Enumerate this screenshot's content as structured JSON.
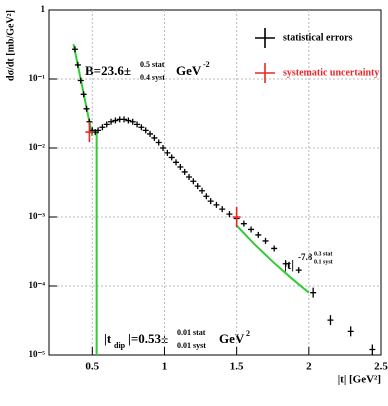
{
  "chart_data": {
    "type": "scatter",
    "xlabel": "|t| [GeV²]",
    "ylabel": "dσ/dt [mb/GeV²]",
    "xlim": [
      0.2,
      2.5
    ],
    "ylim": [
      1e-05,
      1
    ],
    "log_y": true,
    "grid": true,
    "legend": "upper right",
    "xticks": [
      0.5,
      1,
      1.5,
      2,
      2.5
    ],
    "yticks": [
      {
        "value": 1e-05,
        "label": "10⁻⁵"
      },
      {
        "value": 0.0001,
        "label": "10⁻⁴"
      },
      {
        "value": 0.001,
        "label": "10⁻³"
      },
      {
        "value": 0.01,
        "label": "10⁻²"
      },
      {
        "value": 0.1,
        "label": "10⁻¹"
      },
      1
    ],
    "series": [
      {
        "name": "statistical errors",
        "color": "#000000",
        "x": [
          0.38,
          0.4,
          0.42,
          0.44,
          0.46,
          0.48,
          0.5,
          0.52,
          0.54,
          0.57,
          0.6,
          0.63,
          0.66,
          0.69,
          0.72,
          0.75,
          0.78,
          0.81,
          0.84,
          0.87,
          0.9,
          0.93,
          0.96,
          0.99,
          1.02,
          1.05,
          1.08,
          1.11,
          1.14,
          1.17,
          1.2,
          1.23,
          1.26,
          1.29,
          1.32,
          1.36,
          1.4,
          1.45,
          1.5,
          1.55,
          1.6,
          1.65,
          1.7,
          1.76,
          1.84,
          1.93,
          2.03,
          2.15,
          2.29,
          2.44
        ],
        "values": [
          0.27,
          0.16,
          0.095,
          0.06,
          0.037,
          0.024,
          0.018,
          0.017,
          0.018,
          0.02,
          0.022,
          0.024,
          0.025,
          0.026,
          0.026,
          0.025,
          0.024,
          0.022,
          0.02,
          0.018,
          0.016,
          0.014,
          0.012,
          0.01,
          0.0085,
          0.0073,
          0.0062,
          0.0053,
          0.0045,
          0.0038,
          0.0033,
          0.0028,
          0.0024,
          0.002,
          0.0017,
          0.0015,
          0.0013,
          0.0011,
          0.00095,
          0.0008,
          0.00066,
          0.00055,
          0.00045,
          0.00035,
          0.00021,
          0.00017,
          8e-05,
          3.2e-05,
          2.2e-05,
          1.2e-05
        ]
      },
      {
        "name": "systematic uncertainty",
        "color": "#e8262a",
        "x": [
          0.48,
          1.5
        ],
        "values": [
          0.017,
          0.001
        ]
      }
    ],
    "fits": [
      {
        "color": "#33cc33",
        "x": [
          0.37,
          0.4,
          0.43,
          0.46,
          0.5
        ],
        "values": [
          0.32,
          0.158,
          0.0777,
          0.0383,
          0.0149
        ]
      },
      {
        "color": "#33cc33",
        "x": [
          1.5,
          1.625,
          1.75,
          1.875,
          2.0
        ],
        "values": [
          0.00075,
          0.0004,
          0.000225,
          0.000132,
          8e-05
        ]
      }
    ],
    "dip_line": {
      "color": "#33cc33",
      "x": 0.53,
      "top": 0.017
    },
    "annotations": {
      "slope": {
        "main": "B=23.6±",
        "stat": "0.5 stat",
        "syst": "0.4 syst",
        "unit": "GeV",
        "power": "-2"
      },
      "dip": {
        "t": "|t",
        "sub": "dip",
        "main": "|=0.53±",
        "stat": "0.01 stat",
        "syst": "0.01 syst",
        "unit": "GeV",
        "power": "2"
      },
      "power_law": {
        "t": "|t|",
        "exp": "-7.8",
        "stat": "0.3 stat",
        "syst": "0.1 syst"
      }
    }
  }
}
